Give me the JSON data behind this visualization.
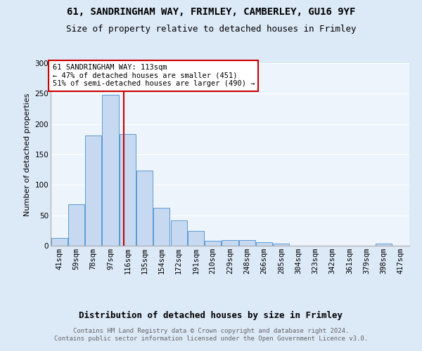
{
  "title1": "61, SANDRINGHAM WAY, FRIMLEY, CAMBERLEY, GU16 9YF",
  "title2": "Size of property relative to detached houses in Frimley",
  "xlabel": "Distribution of detached houses by size in Frimley",
  "ylabel": "Number of detached properties",
  "bin_labels": [
    "41sqm",
    "59sqm",
    "78sqm",
    "97sqm",
    "116sqm",
    "135sqm",
    "154sqm",
    "172sqm",
    "191sqm",
    "210sqm",
    "229sqm",
    "248sqm",
    "266sqm",
    "285sqm",
    "304sqm",
    "323sqm",
    "342sqm",
    "361sqm",
    "379sqm",
    "398sqm",
    "417sqm"
  ],
  "bar_heights": [
    13,
    68,
    181,
    248,
    183,
    124,
    62,
    41,
    24,
    8,
    9,
    9,
    6,
    4,
    0,
    0,
    0,
    0,
    0,
    3,
    0
  ],
  "bar_color": "#c6d9f0",
  "bar_edge_color": "#5b9bd5",
  "vline_x": 3.78,
  "vline_color": "#cc0000",
  "annotation_text": "61 SANDRINGHAM WAY: 113sqm\n← 47% of detached houses are smaller (451)\n51% of semi-detached houses are larger (490) →",
  "annotation_box_color": "white",
  "annotation_box_edge": "#cc0000",
  "ylim": [
    0,
    300
  ],
  "yticks": [
    0,
    50,
    100,
    150,
    200,
    250,
    300
  ],
  "footer": "Contains HM Land Registry data © Crown copyright and database right 2024.\nContains public sector information licensed under the Open Government Licence v3.0.",
  "bg_color": "#dce9f7",
  "plot_bg": "#eef4fc",
  "title1_fontsize": 10,
  "title2_fontsize": 9,
  "xlabel_fontsize": 9,
  "ylabel_fontsize": 8,
  "tick_fontsize": 7.5,
  "footer_fontsize": 6.5,
  "ann_fontsize": 7.5
}
